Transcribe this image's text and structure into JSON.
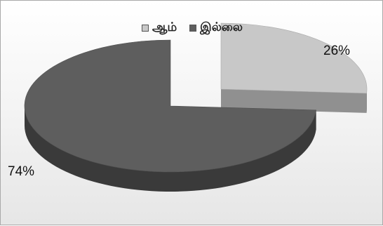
{
  "chart_data": {
    "type": "pie",
    "title": "",
    "legend": "top",
    "three_d": true,
    "exploded": true,
    "categories": [
      "ஆம்",
      "இல்லை"
    ],
    "values": [
      26,
      74
    ],
    "data_labels": [
      "26%",
      "74%"
    ],
    "colors": [
      "#c8c8c8",
      "#5e5e5e"
    ]
  }
}
